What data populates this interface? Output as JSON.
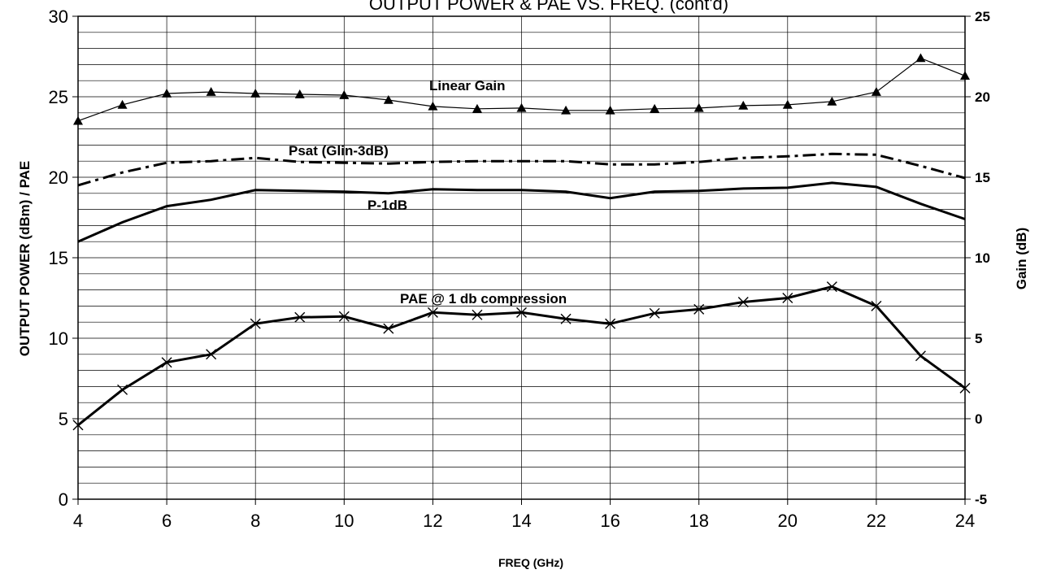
{
  "chart_data": {
    "type": "line",
    "title": "OUTPUT POWER & PAE VS. FREQ. (cont'd)",
    "xlabel": "FREQ (GHz)",
    "ylabel": "OUTPUT POWER (dBm) /  PAE",
    "y2label": "Gain (dB)",
    "xlim": [
      4,
      24
    ],
    "ylim": [
      0,
      30
    ],
    "y2lim": [
      -5,
      25
    ],
    "x_ticks": [
      "4",
      "6",
      "8",
      "10",
      "12",
      "14",
      "16",
      "18",
      "20",
      "22",
      "24"
    ],
    "y_ticks": [
      "0",
      "5",
      "10",
      "15",
      "20",
      "25",
      "30"
    ],
    "y2_ticks": [
      "-5",
      "0",
      "5",
      "10",
      "15",
      "20",
      "25"
    ],
    "grid": true,
    "x": [
      4,
      5,
      6,
      7,
      8,
      9,
      10,
      11,
      12,
      13,
      14,
      15,
      16,
      17,
      18,
      19,
      20,
      21,
      22,
      23,
      24
    ],
    "series": [
      {
        "name": "Linear Gain",
        "axis": "right",
        "marker": "triangle",
        "values": [
          18.5,
          19.5,
          20.2,
          20.3,
          20.2,
          20.15,
          20.1,
          19.8,
          19.4,
          19.25,
          19.3,
          19.15,
          19.15,
          19.25,
          19.3,
          19.45,
          19.5,
          19.7,
          20.3,
          22.4,
          21.3
        ]
      },
      {
        "name": "Psat (Glin-3dB)",
        "axis": "left",
        "marker": "none",
        "dash": "dashdot",
        "values": [
          19.5,
          20.3,
          20.9,
          21.0,
          21.2,
          20.95,
          20.9,
          20.85,
          20.95,
          21.0,
          21.0,
          21.0,
          20.8,
          20.8,
          20.95,
          21.2,
          21.3,
          21.45,
          21.4,
          20.7,
          19.95
        ]
      },
      {
        "name": "P-1dB",
        "axis": "left",
        "marker": "none",
        "values": [
          16.0,
          17.2,
          18.2,
          18.6,
          19.2,
          19.15,
          19.1,
          19.0,
          19.25,
          19.2,
          19.2,
          19.1,
          18.7,
          19.1,
          19.15,
          19.3,
          19.35,
          19.65,
          19.4,
          18.35,
          17.4
        ]
      },
      {
        "name": "PAE @ 1 db compression",
        "axis": "left",
        "marker": "x",
        "values": [
          4.6,
          6.8,
          8.5,
          9.0,
          10.9,
          11.3,
          11.35,
          10.6,
          11.6,
          11.45,
          11.6,
          11.2,
          10.9,
          11.55,
          11.8,
          12.25,
          12.5,
          13.2,
          12.0,
          8.9,
          6.9
        ]
      }
    ]
  }
}
